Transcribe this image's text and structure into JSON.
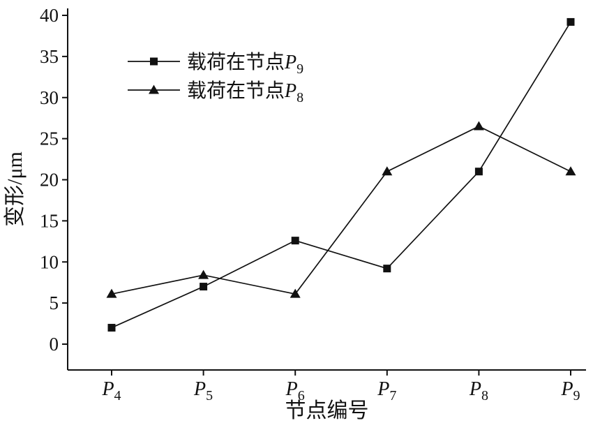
{
  "chart_data": {
    "type": "line",
    "categories": [
      "P4",
      "P5",
      "P6",
      "P7",
      "P8",
      "P9"
    ],
    "series": [
      {
        "name": "载荷在节点P9",
        "marker": "square",
        "values": [
          2.0,
          7.0,
          12.6,
          9.2,
          21.0,
          39.2
        ]
      },
      {
        "name": "载荷在节点P8",
        "marker": "triangle",
        "values": [
          6.1,
          8.4,
          6.1,
          21.0,
          26.5,
          21.0
        ]
      }
    ],
    "xlabel": "节点编号",
    "ylabel": "变形/μm",
    "ylim": [
      0,
      40
    ],
    "yticks": [
      0,
      5,
      10,
      15,
      20,
      25,
      30,
      35,
      40
    ],
    "grid": false,
    "legend_position": "top-left",
    "line_color": "#111111",
    "background": "#ffffff"
  }
}
